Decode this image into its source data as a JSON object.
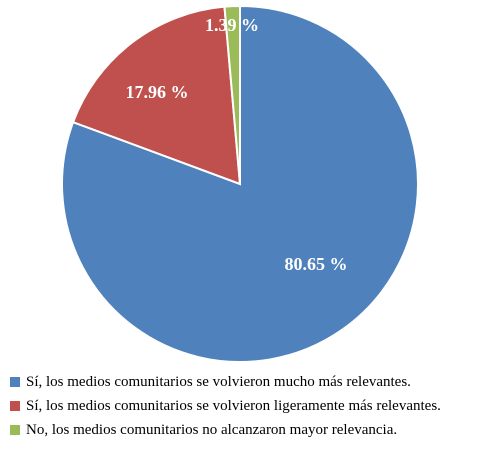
{
  "chart_data": {
    "type": "pie",
    "start_angle_deg": 0,
    "direction": "clockwise",
    "slices": [
      {
        "label": "Sí, los medios comunitarios se volvieron mucho más relevantes.",
        "value": 80.65,
        "value_label": "80.65 %",
        "color": "#4F81BD"
      },
      {
        "label": "Sí, los medios comunitarios se volvieron ligeramente más relevantes.",
        "value": 17.96,
        "value_label": "17.96 %",
        "color": "#C0504D"
      },
      {
        "label": "No, los medios comunitarios no alcanzaron mayor relevancia.",
        "value": 1.39,
        "value_label": "1.39 %",
        "color": "#9BBB59"
      }
    ],
    "legend_position": "bottom-left"
  }
}
